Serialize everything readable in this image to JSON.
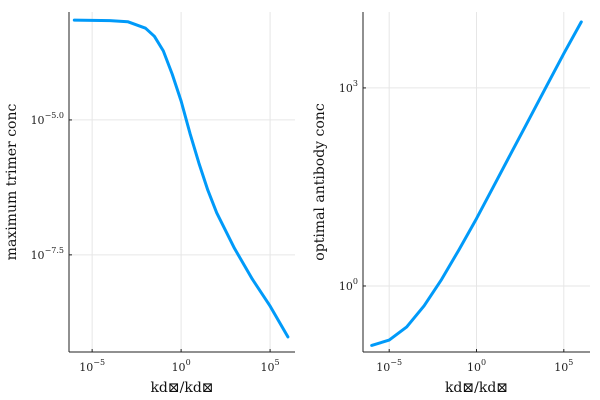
{
  "accent": "#009AF9",
  "chart_data": [
    {
      "type": "line",
      "title": "",
      "xlabel": "kd⊠/kd⊠",
      "ylabel": "maximum trimer conc",
      "xscale": "log10",
      "yscale": "log10",
      "xlim_log10": [
        -6.3,
        6.4
      ],
      "ylim_log10": [
        -9.3,
        -3.0
      ],
      "xticks": [
        {
          "label": "10",
          "exp": "−5",
          "value_log10": -5
        },
        {
          "label": "10",
          "exp": "0",
          "value_log10": 0
        },
        {
          "label": "10",
          "exp": "5",
          "value_log10": 5
        }
      ],
      "yticks": [
        {
          "label": "10",
          "exp": "−5.0",
          "value_log10": -5.0
        },
        {
          "label": "10",
          "exp": "−7.5",
          "value_log10": -7.5
        }
      ],
      "grid": true,
      "legend": "none",
      "series": [
        {
          "x_log10": [
            -6.0,
            -4.0,
            -3.0,
            -2.0,
            -1.5,
            -1.0,
            -0.5,
            0.0,
            0.5,
            1.0,
            1.5,
            2.0,
            3.0,
            4.0,
            5.0,
            6.0
          ],
          "y_log10": [
            -3.15,
            -3.16,
            -3.18,
            -3.3,
            -3.45,
            -3.72,
            -4.15,
            -4.65,
            -5.25,
            -5.8,
            -6.3,
            -6.72,
            -7.38,
            -7.95,
            -8.45,
            -9.02
          ]
        }
      ]
    },
    {
      "type": "line",
      "title": "",
      "xlabel": "kd⊠/kd⊠",
      "ylabel": "optimal antibody conc",
      "xscale": "log10",
      "yscale": "log10",
      "xlim_log10": [
        -6.5,
        6.5
      ],
      "ylim_log10": [
        -1.0,
        4.15
      ],
      "xticks": [
        {
          "label": "10",
          "exp": "−5",
          "value_log10": -5
        },
        {
          "label": "10",
          "exp": "0",
          "value_log10": 0
        },
        {
          "label": "10",
          "exp": "5",
          "value_log10": 5
        }
      ],
      "yticks": [
        {
          "label": "10",
          "exp": "0",
          "value_log10": 0
        },
        {
          "label": "10",
          "exp": "3",
          "value_log10": 3
        }
      ],
      "grid": true,
      "legend": "none",
      "series": [
        {
          "x_log10": [
            -6.0,
            -5.0,
            -4.0,
            -3.0,
            -2.0,
            -1.0,
            0.0,
            1.0,
            2.0,
            3.0,
            4.0,
            5.0,
            6.0
          ],
          "y_log10": [
            -0.9,
            -0.82,
            -0.62,
            -0.3,
            0.1,
            0.55,
            1.02,
            1.52,
            2.02,
            2.52,
            3.02,
            3.52,
            4.0
          ]
        }
      ]
    }
  ]
}
